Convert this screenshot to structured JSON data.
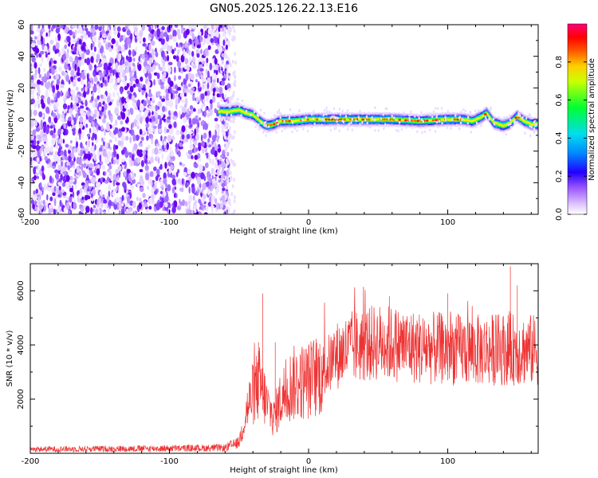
{
  "figure": {
    "title": "GN05.2025.126.22.13.E16"
  },
  "chart_data": [
    {
      "type": "heatmap",
      "xlabel": "Height of straight line (km)",
      "ylabel": "Frequency (Hz)",
      "xlim": [
        -200,
        165
      ],
      "ylim": [
        -60,
        60
      ],
      "x_ticks": [
        -200,
        -100,
        0,
        100
      ],
      "y_ticks": [
        -60,
        -40,
        -20,
        0,
        20,
        40,
        60
      ],
      "noise_region_x": [
        -200,
        -57
      ],
      "signal_track": [
        {
          "x": -65,
          "y": 5
        },
        {
          "x": -57,
          "y": 5
        },
        {
          "x": -50,
          "y": 6
        },
        {
          "x": -45,
          "y": 4
        },
        {
          "x": -40,
          "y": 3
        },
        {
          "x": -35,
          "y": -1
        },
        {
          "x": -30,
          "y": -4
        },
        {
          "x": -25,
          "y": -3
        },
        {
          "x": -20,
          "y": -1
        },
        {
          "x": -10,
          "y": -1
        },
        {
          "x": 0,
          "y": 0
        },
        {
          "x": 20,
          "y": 0
        },
        {
          "x": 40,
          "y": 0
        },
        {
          "x": 60,
          "y": 0
        },
        {
          "x": 80,
          "y": -1
        },
        {
          "x": 100,
          "y": 0
        },
        {
          "x": 110,
          "y": 0
        },
        {
          "x": 118,
          "y": -1
        },
        {
          "x": 125,
          "y": 2
        },
        {
          "x": 128,
          "y": 4
        },
        {
          "x": 133,
          "y": -2
        },
        {
          "x": 140,
          "y": -4
        },
        {
          "x": 145,
          "y": -2
        },
        {
          "x": 150,
          "y": 2
        },
        {
          "x": 155,
          "y": -1
        },
        {
          "x": 160,
          "y": -3
        },
        {
          "x": 165,
          "y": -3
        }
      ],
      "grid": false
    },
    {
      "type": "line",
      "xlabel": "Height of straight line (km)",
      "ylabel": "SNR (10 * v/v)",
      "xlim": [
        -200,
        165
      ],
      "ylim": [
        0,
        7000
      ],
      "x_ticks": [
        -200,
        -100,
        0,
        100
      ],
      "y_ticks": [
        2000,
        4000,
        6000
      ],
      "color": "#ee3333",
      "envelope": [
        {
          "x": -200,
          "y": 150
        },
        {
          "x": -100,
          "y": 180
        },
        {
          "x": -60,
          "y": 200
        },
        {
          "x": -50,
          "y": 400
        },
        {
          "x": -45,
          "y": 1500
        },
        {
          "x": -40,
          "y": 2200
        },
        {
          "x": -35,
          "y": 2600
        },
        {
          "x": -30,
          "y": 1800
        },
        {
          "x": -25,
          "y": 1300
        },
        {
          "x": -20,
          "y": 2000
        },
        {
          "x": -15,
          "y": 2400
        },
        {
          "x": -10,
          "y": 2600
        },
        {
          "x": 0,
          "y": 2700
        },
        {
          "x": 10,
          "y": 3000
        },
        {
          "x": 20,
          "y": 3600
        },
        {
          "x": 30,
          "y": 3900
        },
        {
          "x": 40,
          "y": 4000
        },
        {
          "x": 50,
          "y": 4100
        },
        {
          "x": 60,
          "y": 4050
        },
        {
          "x": 80,
          "y": 3900
        },
        {
          "x": 100,
          "y": 3850
        },
        {
          "x": 120,
          "y": 3800
        },
        {
          "x": 140,
          "y": 3850
        },
        {
          "x": 165,
          "y": 3800
        }
      ],
      "spikes": [
        {
          "x": -33,
          "y": 5900
        },
        {
          "x": -36,
          "y": 4100
        },
        {
          "x": -24,
          "y": 4100
        },
        {
          "x": 58,
          "y": 5800
        },
        {
          "x": 100,
          "y": 5900
        },
        {
          "x": 145,
          "y": 6900
        },
        {
          "x": 150,
          "y": 6200
        }
      ],
      "grid": false
    }
  ],
  "colorbar": {
    "label": "Normalized spectral amplitude",
    "ticks": [
      "0.0",
      "0.2",
      "0.4",
      "0.6",
      "0.8"
    ],
    "tick_values": [
      0,
      0.2,
      0.4,
      0.6,
      0.8
    ],
    "range": [
      0,
      1
    ],
    "colors": [
      "#ffffff",
      "#cc99ff",
      "#7700ff",
      "#0000ff",
      "#00ddff",
      "#00ff44",
      "#ffff00",
      "#ff6600",
      "#ff0000",
      "#ff0066"
    ]
  }
}
